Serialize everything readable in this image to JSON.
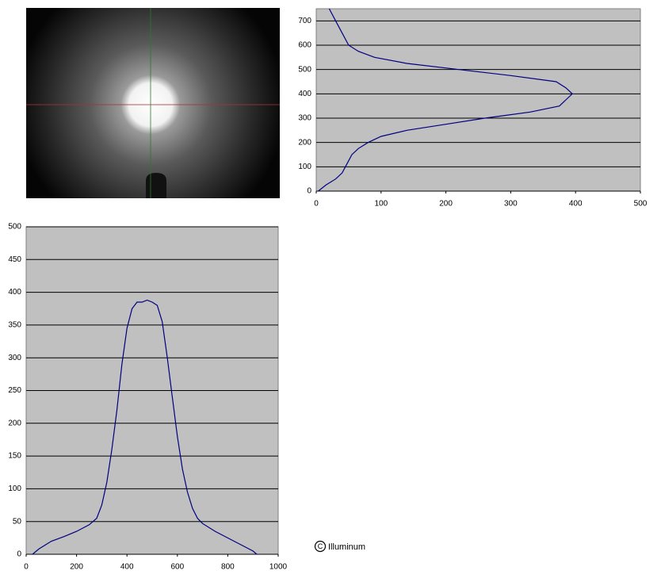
{
  "chart_data": [
    {
      "type": "line",
      "orientation": "horizontal",
      "x": [
        0,
        25,
        50,
        75,
        100,
        125,
        150,
        175,
        200,
        225,
        250,
        275,
        300,
        325,
        350,
        375,
        400,
        425,
        450,
        475,
        500,
        525,
        550,
        575,
        600,
        650,
        700,
        750
      ],
      "values": [
        3,
        15,
        30,
        40,
        45,
        50,
        55,
        65,
        80,
        100,
        140,
        200,
        260,
        330,
        375,
        385,
        395,
        385,
        370,
        300,
        220,
        140,
        90,
        65,
        50,
        40,
        30,
        20
      ],
      "color": "#000080",
      "xlim": [
        0,
        750
      ],
      "xticks": [
        0,
        100,
        200,
        300,
        400,
        500,
        600,
        700
      ],
      "ylim": [
        0,
        500
      ],
      "yticks": [
        0,
        100,
        200,
        300,
        400,
        500
      ],
      "grid": "x"
    },
    {
      "type": "line",
      "orientation": "vertical",
      "x": [
        25,
        50,
        100,
        150,
        200,
        250,
        280,
        300,
        320,
        340,
        360,
        380,
        400,
        420,
        440,
        460,
        480,
        500,
        520,
        540,
        560,
        580,
        600,
        620,
        640,
        660,
        680,
        700,
        750,
        800,
        850,
        900,
        915
      ],
      "values": [
        0,
        8,
        20,
        27,
        35,
        45,
        55,
        75,
        110,
        160,
        220,
        290,
        345,
        375,
        385,
        385,
        388,
        385,
        380,
        355,
        300,
        240,
        180,
        130,
        95,
        70,
        55,
        47,
        35,
        25,
        15,
        5,
        0
      ],
      "color": "#000080",
      "xlim": [
        0,
        1000
      ],
      "xticks": [
        0,
        200,
        400,
        600,
        800,
        1000
      ],
      "ylim": [
        0,
        500
      ],
      "yticks": [
        0,
        50,
        100,
        150,
        200,
        250,
        300,
        350,
        400,
        450,
        500
      ],
      "grid": "y"
    }
  ],
  "caption": "Illuminum"
}
